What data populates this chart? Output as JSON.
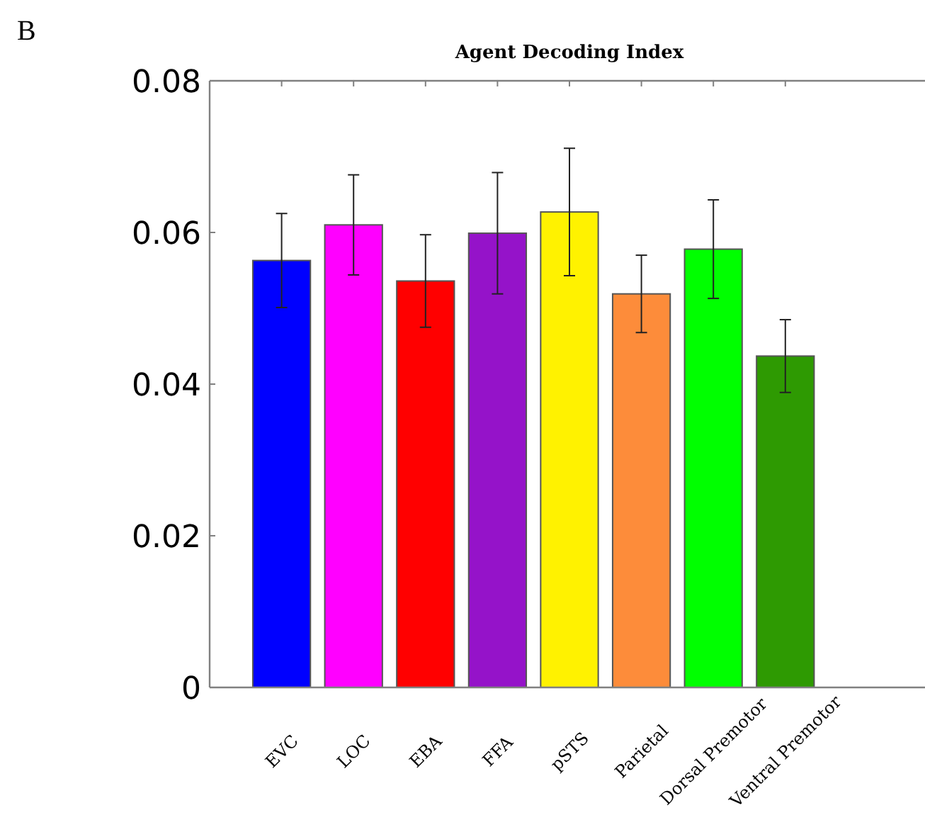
{
  "chart_data": {
    "type": "bar",
    "title": "Agent Decoding Index",
    "annotations": [
      "B"
    ],
    "categories": [
      "EVC",
      "LOC",
      "EBA",
      "FFA",
      "pSTS",
      "Parietal",
      "Dorsal Premotor",
      "Ventral Premotor"
    ],
    "values": [
      0.0563,
      0.061,
      0.0536,
      0.0599,
      0.0627,
      0.0519,
      0.0578,
      0.0437
    ],
    "errors": [
      0.0062,
      0.0066,
      0.0061,
      0.008,
      0.0084,
      0.0051,
      0.0065,
      0.0048
    ],
    "colors": [
      "#0000ff",
      "#ff00ff",
      "#ff0000",
      "#9513c9",
      "#fff200",
      "#fd8c3a",
      "#00ff00",
      "#2e9a02"
    ],
    "ylim": [
      0,
      0.08
    ],
    "yticks": [
      0,
      0.02,
      0.04,
      0.06,
      0.08
    ]
  }
}
